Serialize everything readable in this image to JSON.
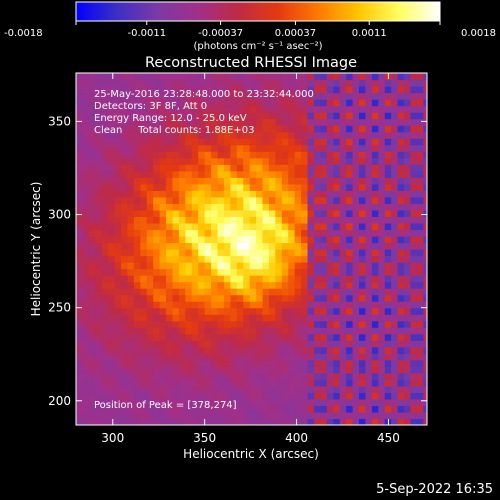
{
  "chart_data": {
    "type": "heatmap",
    "title": "Reconstructed RHESSI Image",
    "xlabel": "Heliocentric X (arcsec)",
    "ylabel": "Heliocentric Y (arcsec)",
    "xlim": [
      280,
      471
    ],
    "ylim": [
      187,
      376
    ],
    "xticks": [
      300,
      350,
      400,
      450
    ],
    "yticks": [
      200,
      250,
      300,
      350
    ],
    "colorbar": {
      "min": -0.0018,
      "max": 0.0018,
      "tick_labels": [
        "-0.0018",
        "-0.0011",
        "-0.00037",
        "0.00037",
        "0.0011",
        "0.0018"
      ],
      "tick_values": [
        -0.0018,
        -0.0011,
        -0.00037,
        0.00037,
        0.0011,
        0.0018
      ],
      "label": "(photons cm⁻² s⁻¹ asec⁻²)",
      "colormap": [
        "#0000ff",
        "#3b2fc4",
        "#7a3aa6",
        "#a0308a",
        "#c02a45",
        "#e43a10",
        "#ff7a00",
        "#ffc700",
        "#ffff60",
        "#ffffff"
      ]
    },
    "peak": {
      "x": 378,
      "y": 274
    },
    "source_center": {
      "x": 360,
      "y": 290
    },
    "annotations": [
      "25-May-2016 23:28:48.000 to 23:32:44.000",
      "Detectors: 3F 8F, Att 0",
      "Energy Range: 12.0 - 25.0 keV",
      "Clean     Total counts: 1.88E+03"
    ],
    "peak_label": "Position of Peak = [378,274]"
  },
  "footer": {
    "timestamp": "5-Sep-2022 16:35"
  }
}
